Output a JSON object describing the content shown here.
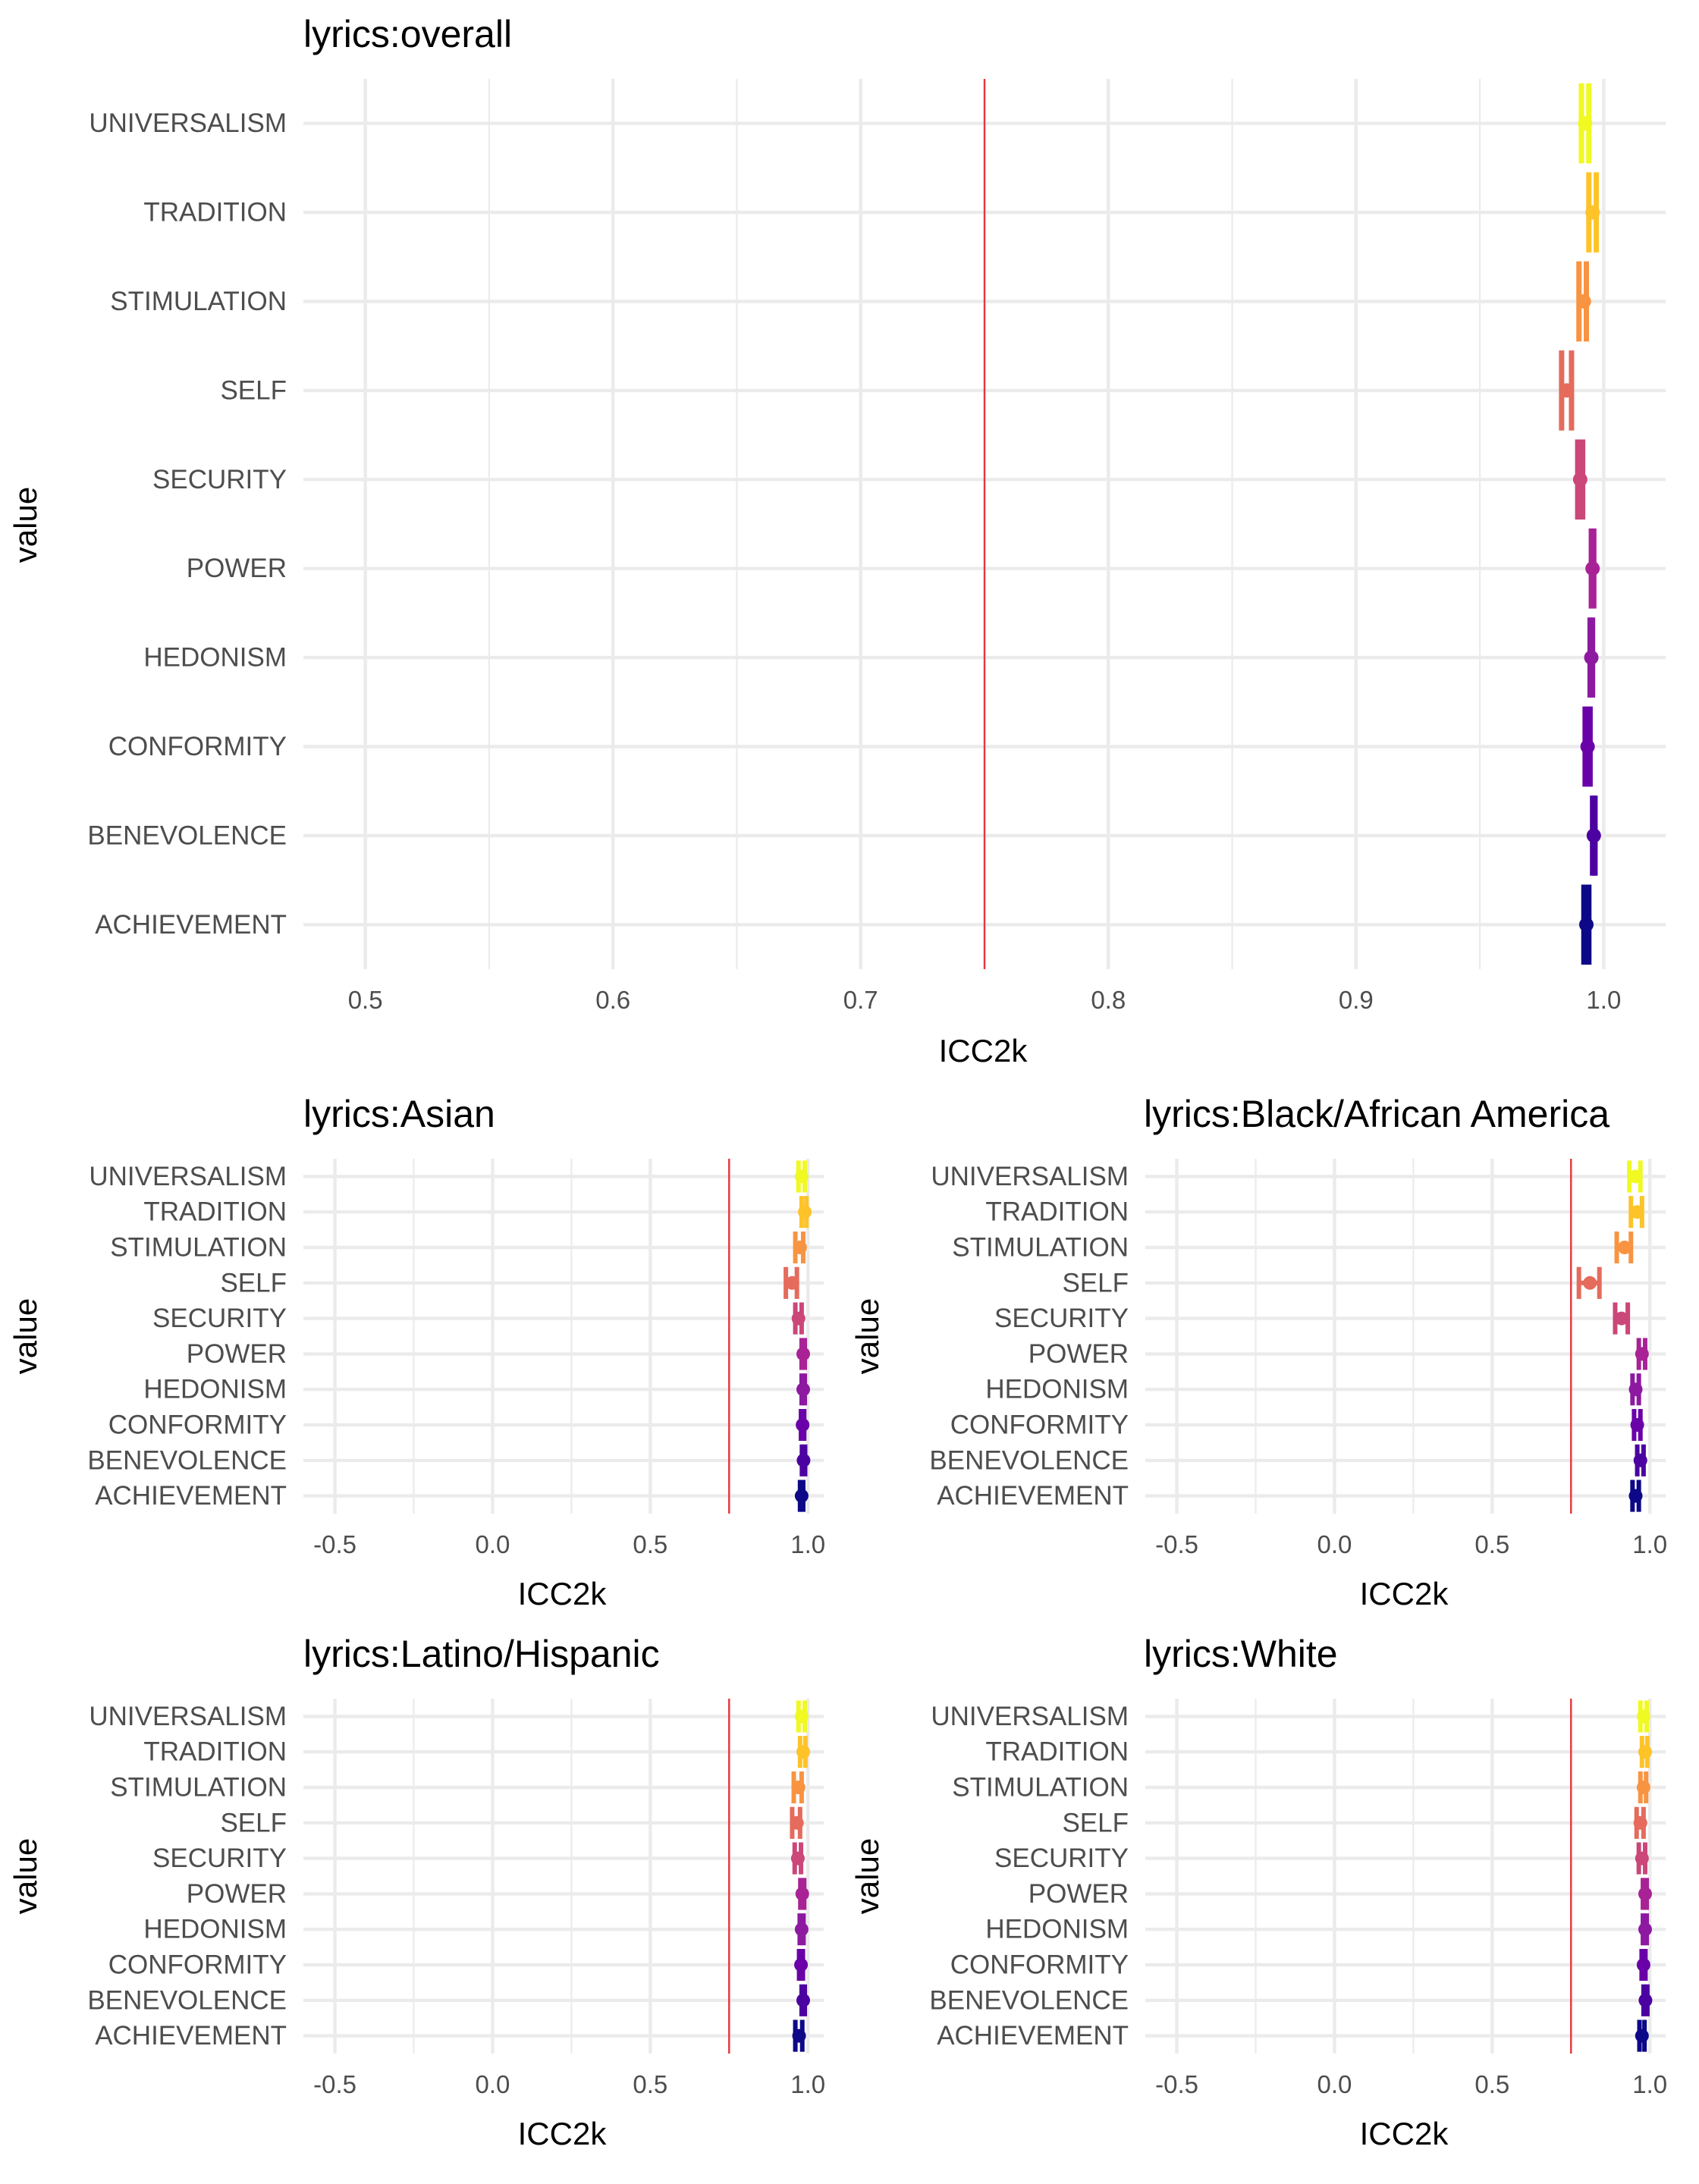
{
  "axis_title_y": "value",
  "axis_title_x": "ICC2k",
  "colors": {
    "UNIVERSALISM": "#f0f921",
    "TRADITION": "#fdc328",
    "STIMULATION": "#f89441",
    "SELF": "#e56b5d",
    "SECURITY": "#cb4679",
    "POWER": "#a82296",
    "HEDONISM": "#8d19a1",
    "CONFORMITY": "#6a00a8",
    "BENEVOLENCE": "#4c02a1",
    "ACHIEVEMENT": "#0d0887",
    "reference_line": "#e8353a",
    "grid": "#ebebeb"
  },
  "chart_data": [
    {
      "type": "scatter",
      "subtype": "point-errorbar",
      "title": "lyrics:overall",
      "xlabel": "ICC2k",
      "ylabel": "value",
      "xlim": [
        0.475,
        1.025
      ],
      "xticks": [
        0.5,
        0.6,
        0.7,
        0.8,
        0.9,
        1.0
      ],
      "xtick_labels": [
        "0.5",
        "0.6",
        "0.7",
        "0.8",
        "0.9",
        "1.0"
      ],
      "reference_line": 0.75,
      "grid": true,
      "legend": "none",
      "categories": [
        "UNIVERSALISM",
        "TRADITION",
        "STIMULATION",
        "SELF",
        "SECURITY",
        "POWER",
        "HEDONISM",
        "CONFORMITY",
        "BENEVOLENCE",
        "ACHIEVEMENT"
      ],
      "points": [
        {
          "label": "UNIVERSALISM",
          "icc": 0.9925,
          "lower": 0.991,
          "upper": 0.994
        },
        {
          "label": "TRADITION",
          "icc": 0.9955,
          "lower": 0.994,
          "upper": 0.997
        },
        {
          "label": "STIMULATION",
          "icc": 0.992,
          "lower": 0.99,
          "upper": 0.993
        },
        {
          "label": "SELF",
          "icc": 0.985,
          "lower": 0.983,
          "upper": 0.987
        },
        {
          "label": "SECURITY",
          "icc": 0.9905,
          "lower": 0.9895,
          "upper": 0.9915
        },
        {
          "label": "POWER",
          "icc": 0.9955,
          "lower": 0.995,
          "upper": 0.996
        },
        {
          "label": "HEDONISM",
          "icc": 0.995,
          "lower": 0.9945,
          "upper": 0.9955
        },
        {
          "label": "CONFORMITY",
          "icc": 0.9935,
          "lower": 0.9925,
          "upper": 0.9945
        },
        {
          "label": "BENEVOLENCE",
          "icc": 0.996,
          "lower": 0.9955,
          "upper": 0.9965
        },
        {
          "label": "ACHIEVEMENT",
          "icc": 0.993,
          "lower": 0.992,
          "upper": 0.994
        }
      ]
    },
    {
      "type": "scatter",
      "subtype": "point-errorbar",
      "title": "lyrics:Asian",
      "xlabel": "ICC2k",
      "ylabel": "value",
      "xlim": [
        -0.6,
        1.05
      ],
      "xticks": [
        -0.5,
        0.0,
        0.5,
        1.0
      ],
      "xtick_labels": [
        "-0.5",
        "0.0",
        "0.5",
        "1.0"
      ],
      "reference_line": 0.75,
      "grid": true,
      "legend": "none",
      "categories": [
        "UNIVERSALISM",
        "TRADITION",
        "STIMULATION",
        "SELF",
        "SECURITY",
        "POWER",
        "HEDONISM",
        "CONFORMITY",
        "BENEVOLENCE",
        "ACHIEVEMENT"
      ],
      "points": [
        {
          "label": "UNIVERSALISM",
          "icc": 0.98,
          "lower": 0.97,
          "upper": 0.99
        },
        {
          "label": "TRADITION",
          "icc": 0.99,
          "lower": 0.98,
          "upper": 0.995
        },
        {
          "label": "STIMULATION",
          "icc": 0.975,
          "lower": 0.96,
          "upper": 0.985
        },
        {
          "label": "SELF",
          "icc": 0.95,
          "lower": 0.93,
          "upper": 0.965
        },
        {
          "label": "SECURITY",
          "icc": 0.97,
          "lower": 0.96,
          "upper": 0.98
        },
        {
          "label": "POWER",
          "icc": 0.985,
          "lower": 0.98,
          "upper": 0.99
        },
        {
          "label": "HEDONISM",
          "icc": 0.985,
          "lower": 0.98,
          "upper": 0.99
        },
        {
          "label": "CONFORMITY",
          "icc": 0.983,
          "lower": 0.978,
          "upper": 0.988
        },
        {
          "label": "BENEVOLENCE",
          "icc": 0.986,
          "lower": 0.981,
          "upper": 0.991
        },
        {
          "label": "ACHIEVEMENT",
          "icc": 0.98,
          "lower": 0.975,
          "upper": 0.985
        }
      ]
    },
    {
      "type": "scatter",
      "subtype": "point-errorbar",
      "title": "lyrics:Black/African America",
      "xlabel": "ICC2k",
      "ylabel": "value",
      "xlim": [
        -0.6,
        1.05
      ],
      "xticks": [
        -0.5,
        0.0,
        0.5,
        1.0
      ],
      "xtick_labels": [
        "-0.5",
        "0.0",
        "0.5",
        "1.0"
      ],
      "reference_line": 0.75,
      "grid": true,
      "legend": "none",
      "categories": [
        "UNIVERSALISM",
        "TRADITION",
        "STIMULATION",
        "SELF",
        "SECURITY",
        "POWER",
        "HEDONISM",
        "CONFORMITY",
        "BENEVOLENCE",
        "ACHIEVEMENT"
      ],
      "points": [
        {
          "label": "UNIVERSALISM",
          "icc": 0.955,
          "lower": 0.935,
          "upper": 0.97
        },
        {
          "label": "TRADITION",
          "icc": 0.96,
          "lower": 0.94,
          "upper": 0.975
        },
        {
          "label": "STIMULATION",
          "icc": 0.92,
          "lower": 0.895,
          "upper": 0.94
        },
        {
          "label": "SELF",
          "icc": 0.81,
          "lower": 0.775,
          "upper": 0.84
        },
        {
          "label": "SECURITY",
          "icc": 0.91,
          "lower": 0.89,
          "upper": 0.93
        },
        {
          "label": "POWER",
          "icc": 0.975,
          "lower": 0.965,
          "upper": 0.985
        },
        {
          "label": "HEDONISM",
          "icc": 0.955,
          "lower": 0.945,
          "upper": 0.965
        },
        {
          "label": "CONFORMITY",
          "icc": 0.96,
          "lower": 0.95,
          "upper": 0.97
        },
        {
          "label": "BENEVOLENCE",
          "icc": 0.97,
          "lower": 0.96,
          "upper": 0.98
        },
        {
          "label": "ACHIEVEMENT",
          "icc": 0.955,
          "lower": 0.945,
          "upper": 0.965
        }
      ]
    },
    {
      "type": "scatter",
      "subtype": "point-errorbar",
      "title": "lyrics:Latino/Hispanic",
      "xlabel": "ICC2k",
      "ylabel": "value",
      "xlim": [
        -0.6,
        1.05
      ],
      "xticks": [
        -0.5,
        0.0,
        0.5,
        1.0
      ],
      "xtick_labels": [
        "-0.5",
        "0.0",
        "0.5",
        "1.0"
      ],
      "reference_line": 0.75,
      "grid": true,
      "legend": "none",
      "categories": [
        "UNIVERSALISM",
        "TRADITION",
        "STIMULATION",
        "SELF",
        "SECURITY",
        "POWER",
        "HEDONISM",
        "CONFORMITY",
        "BENEVOLENCE",
        "ACHIEVEMENT"
      ],
      "points": [
        {
          "label": "UNIVERSALISM",
          "icc": 0.98,
          "lower": 0.97,
          "upper": 0.99
        },
        {
          "label": "TRADITION",
          "icc": 0.985,
          "lower": 0.975,
          "upper": 0.992
        },
        {
          "label": "STIMULATION",
          "icc": 0.97,
          "lower": 0.955,
          "upper": 0.98
        },
        {
          "label": "SELF",
          "icc": 0.965,
          "lower": 0.95,
          "upper": 0.975
        },
        {
          "label": "SECURITY",
          "icc": 0.968,
          "lower": 0.958,
          "upper": 0.978
        },
        {
          "label": "POWER",
          "icc": 0.982,
          "lower": 0.976,
          "upper": 0.988
        },
        {
          "label": "HEDONISM",
          "icc": 0.98,
          "lower": 0.974,
          "upper": 0.986
        },
        {
          "label": "CONFORMITY",
          "icc": 0.978,
          "lower": 0.972,
          "upper": 0.984
        },
        {
          "label": "BENEVOLENCE",
          "icc": 0.985,
          "lower": 0.98,
          "upper": 0.99
        },
        {
          "label": "ACHIEVEMENT",
          "icc": 0.972,
          "lower": 0.96,
          "upper": 0.982
        }
      ]
    },
    {
      "type": "scatter",
      "subtype": "point-errorbar",
      "title": "lyrics:White",
      "xlabel": "ICC2k",
      "ylabel": "value",
      "xlim": [
        -0.6,
        1.05
      ],
      "xticks": [
        -0.5,
        0.0,
        0.5,
        1.0
      ],
      "xtick_labels": [
        "-0.5",
        "0.0",
        "0.5",
        "1.0"
      ],
      "reference_line": 0.75,
      "grid": true,
      "legend": "none",
      "categories": [
        "UNIVERSALISM",
        "TRADITION",
        "STIMULATION",
        "SELF",
        "SECURITY",
        "POWER",
        "HEDONISM",
        "CONFORMITY",
        "BENEVOLENCE",
        "ACHIEVEMENT"
      ],
      "points": [
        {
          "label": "UNIVERSALISM",
          "icc": 0.98,
          "lower": 0.97,
          "upper": 0.99
        },
        {
          "label": "TRADITION",
          "icc": 0.985,
          "lower": 0.975,
          "upper": 0.992
        },
        {
          "label": "STIMULATION",
          "icc": 0.98,
          "lower": 0.97,
          "upper": 0.988
        },
        {
          "label": "SELF",
          "icc": 0.97,
          "lower": 0.958,
          "upper": 0.98
        },
        {
          "label": "SECURITY",
          "icc": 0.975,
          "lower": 0.965,
          "upper": 0.985
        },
        {
          "label": "POWER",
          "icc": 0.985,
          "lower": 0.978,
          "upper": 0.99
        },
        {
          "label": "HEDONISM",
          "icc": 0.985,
          "lower": 0.978,
          "upper": 0.99
        },
        {
          "label": "CONFORMITY",
          "icc": 0.98,
          "lower": 0.974,
          "upper": 0.986
        },
        {
          "label": "BENEVOLENCE",
          "icc": 0.986,
          "lower": 0.98,
          "upper": 0.992
        },
        {
          "label": "ACHIEVEMENT",
          "icc": 0.975,
          "lower": 0.967,
          "upper": 0.983
        }
      ]
    }
  ]
}
